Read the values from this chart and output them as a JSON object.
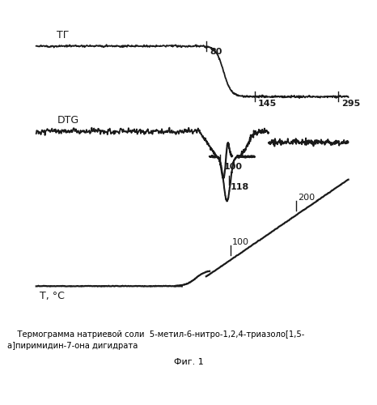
{
  "fig_width": 4.66,
  "fig_height": 5.0,
  "dpi": 100,
  "bg_color": "#ffffff",
  "plot_bg_color": "#ffffff",
  "line_color": "#1a1a1a",
  "caption_line1": "    Термограмма натриевой соли  5-метил-6-нитро-1,2,4-триазоло[1,5-",
  "caption_line2": "а]пиримидин-7-она дигидрата",
  "fig_label": "Фиг. 1",
  "label_TG": "ТГ",
  "label_DTG": "DTG",
  "label_T": "T, °C",
  "tick_80": "80",
  "tick_145": "145",
  "tick_295": "295",
  "tick_100a": "100",
  "tick_118": "118",
  "tick_200": "200",
  "tick_100b": "100"
}
